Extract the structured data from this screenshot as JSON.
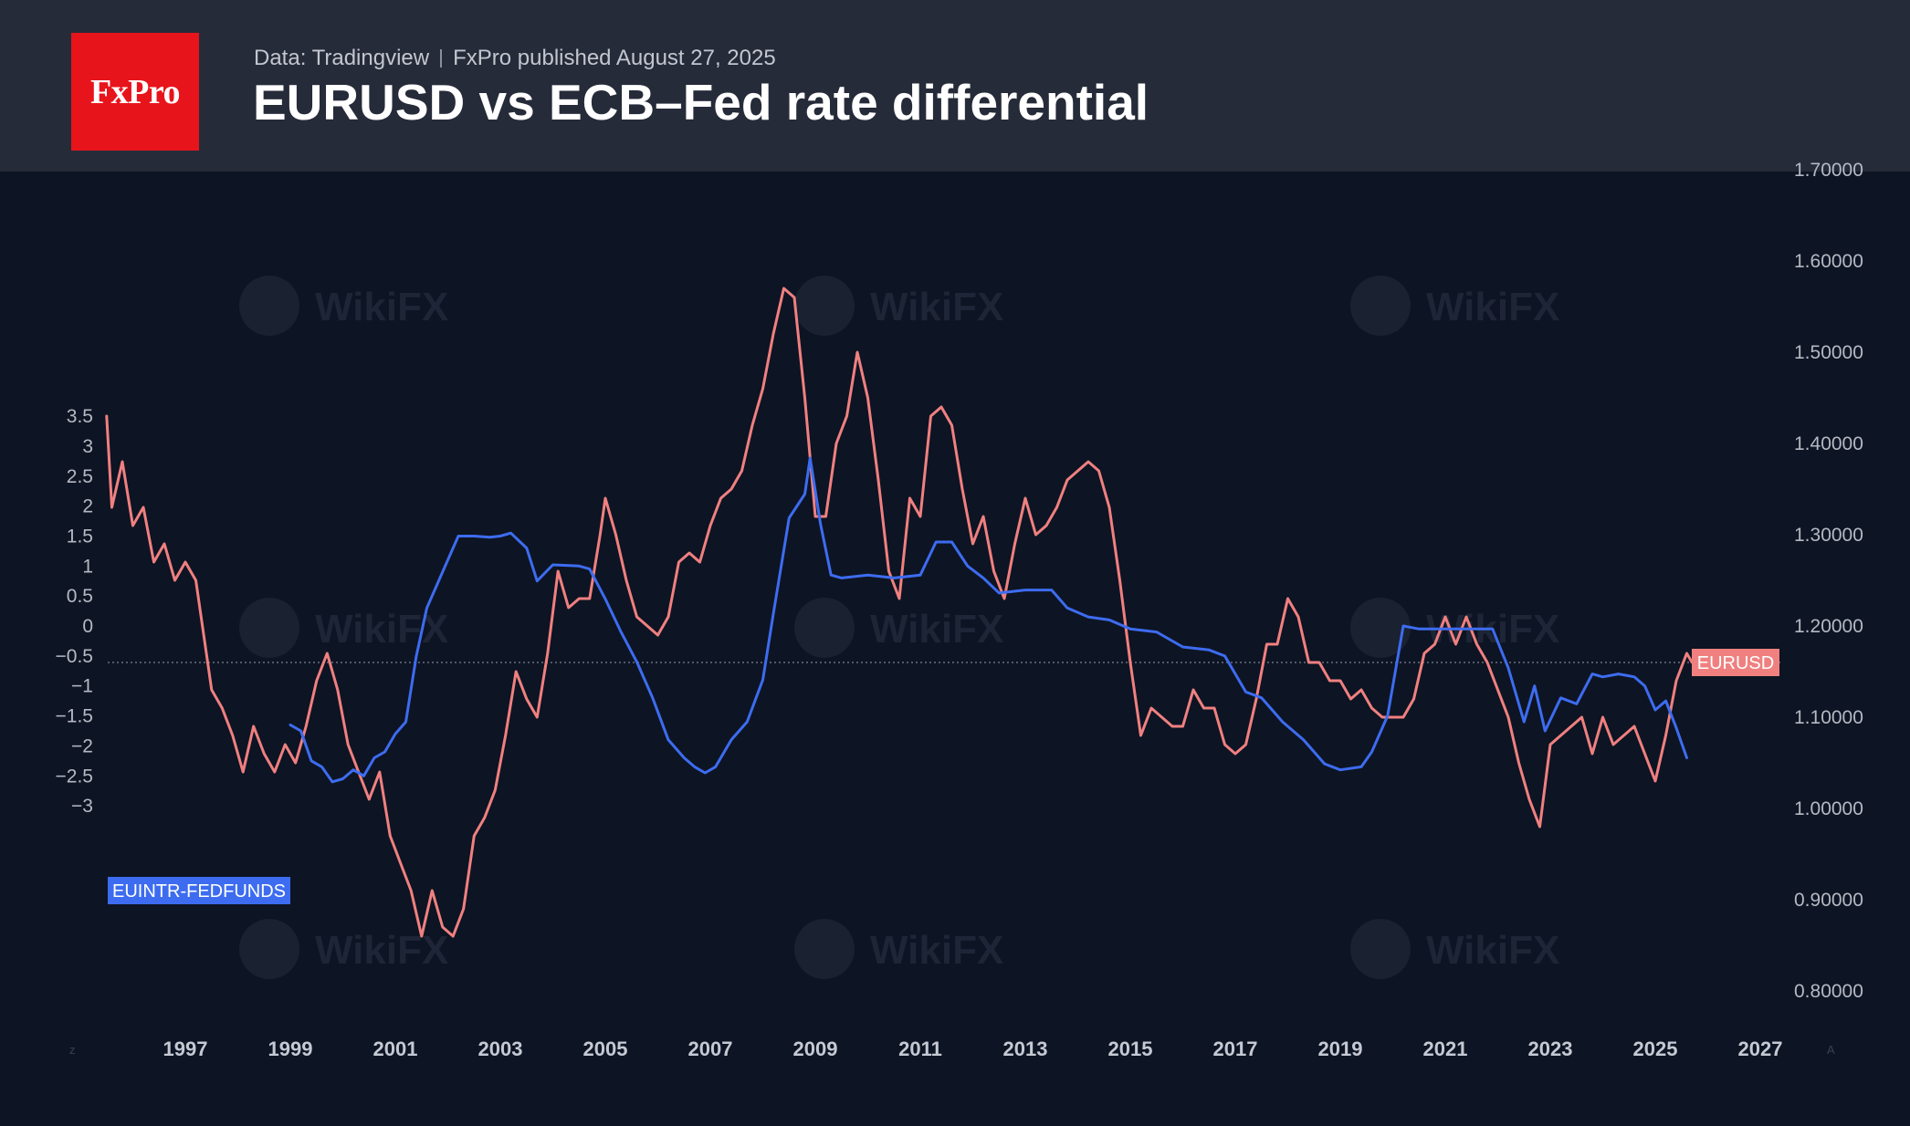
{
  "header": {
    "logo_text": "FxPro",
    "source": "Data: Tradingview",
    "published": "FxPro published August 27, 2025",
    "title": "EURUSD vs ECB–Fed rate differential"
  },
  "colors": {
    "background": "#0d1423",
    "header_bg": "#262b39",
    "logo_red": "#e8141b",
    "eurusd": "#f08080",
    "differential": "#3d6cf0"
  },
  "watermark": "WikiFX",
  "chart_data": {
    "type": "line",
    "title": "EURUSD vs ECB–Fed rate differential",
    "x_ticks": [
      "1997",
      "1999",
      "2001",
      "2003",
      "2005",
      "2007",
      "2009",
      "2011",
      "2013",
      "2015",
      "2017",
      "2019",
      "2021",
      "2023",
      "2025",
      "2027"
    ],
    "y_left": {
      "ticks": [
        "3.5",
        "3",
        "2.5",
        "2",
        "1.5",
        "1",
        "0.5",
        "0",
        "−0.5",
        "−1",
        "−1.5",
        "−2",
        "−2.5",
        "−3"
      ],
      "range": [
        -3,
        3.5
      ]
    },
    "y_right": {
      "ticks": [
        "1.70000",
        "1.60000",
        "1.50000",
        "1.40000",
        "1.30000",
        "1.20000",
        "1.10000",
        "1.00000",
        "0.90000",
        "0.80000"
      ],
      "range": [
        0.8,
        1.7
      ]
    },
    "reference_line": 1.16,
    "series": [
      {
        "name": "EURUSD",
        "axis": "right",
        "color": "#f08080",
        "label": "EURUSD",
        "points": [
          [
            1995.5,
            1.43
          ],
          [
            1995.6,
            1.33
          ],
          [
            1995.8,
            1.38
          ],
          [
            1996.0,
            1.31
          ],
          [
            1996.2,
            1.33
          ],
          [
            1996.4,
            1.27
          ],
          [
            1996.6,
            1.29
          ],
          [
            1996.8,
            1.25
          ],
          [
            1997.0,
            1.27
          ],
          [
            1997.2,
            1.25
          ],
          [
            1997.5,
            1.13
          ],
          [
            1997.7,
            1.11
          ],
          [
            1997.9,
            1.08
          ],
          [
            1998.1,
            1.04
          ],
          [
            1998.3,
            1.09
          ],
          [
            1998.5,
            1.06
          ],
          [
            1998.7,
            1.04
          ],
          [
            1998.9,
            1.07
          ],
          [
            1999.1,
            1.05
          ],
          [
            1999.3,
            1.09
          ],
          [
            1999.5,
            1.14
          ],
          [
            1999.7,
            1.17
          ],
          [
            1999.9,
            1.13
          ],
          [
            2000.1,
            1.07
          ],
          [
            2000.3,
            1.04
          ],
          [
            2000.5,
            1.01
          ],
          [
            2000.7,
            1.04
          ],
          [
            2000.9,
            0.97
          ],
          [
            2001.1,
            0.94
          ],
          [
            2001.3,
            0.91
          ],
          [
            2001.5,
            0.86
          ],
          [
            2001.7,
            0.91
          ],
          [
            2001.9,
            0.87
          ],
          [
            2002.1,
            0.86
          ],
          [
            2002.3,
            0.89
          ],
          [
            2002.5,
            0.97
          ],
          [
            2002.7,
            0.99
          ],
          [
            2002.9,
            1.02
          ],
          [
            2003.1,
            1.08
          ],
          [
            2003.3,
            1.15
          ],
          [
            2003.5,
            1.12
          ],
          [
            2003.7,
            1.1
          ],
          [
            2003.9,
            1.17
          ],
          [
            2004.1,
            1.26
          ],
          [
            2004.3,
            1.22
          ],
          [
            2004.5,
            1.23
          ],
          [
            2004.7,
            1.23
          ],
          [
            2004.9,
            1.3
          ],
          [
            2005.0,
            1.34
          ],
          [
            2005.2,
            1.3
          ],
          [
            2005.4,
            1.25
          ],
          [
            2005.6,
            1.21
          ],
          [
            2005.8,
            1.2
          ],
          [
            2006.0,
            1.19
          ],
          [
            2006.2,
            1.21
          ],
          [
            2006.4,
            1.27
          ],
          [
            2006.6,
            1.28
          ],
          [
            2006.8,
            1.27
          ],
          [
            2007.0,
            1.31
          ],
          [
            2007.2,
            1.34
          ],
          [
            2007.4,
            1.35
          ],
          [
            2007.6,
            1.37
          ],
          [
            2007.8,
            1.42
          ],
          [
            2008.0,
            1.46
          ],
          [
            2008.2,
            1.52
          ],
          [
            2008.4,
            1.57
          ],
          [
            2008.6,
            1.56
          ],
          [
            2008.8,
            1.45
          ],
          [
            2009.0,
            1.32
          ],
          [
            2009.2,
            1.32
          ],
          [
            2009.4,
            1.4
          ],
          [
            2009.6,
            1.43
          ],
          [
            2009.8,
            1.5
          ],
          [
            2010.0,
            1.45
          ],
          [
            2010.2,
            1.36
          ],
          [
            2010.4,
            1.26
          ],
          [
            2010.6,
            1.23
          ],
          [
            2010.8,
            1.34
          ],
          [
            2011.0,
            1.32
          ],
          [
            2011.2,
            1.43
          ],
          [
            2011.4,
            1.44
          ],
          [
            2011.6,
            1.42
          ],
          [
            2011.8,
            1.35
          ],
          [
            2012.0,
            1.29
          ],
          [
            2012.2,
            1.32
          ],
          [
            2012.4,
            1.26
          ],
          [
            2012.6,
            1.23
          ],
          [
            2012.8,
            1.29
          ],
          [
            2013.0,
            1.34
          ],
          [
            2013.2,
            1.3
          ],
          [
            2013.4,
            1.31
          ],
          [
            2013.6,
            1.33
          ],
          [
            2013.8,
            1.36
          ],
          [
            2014.0,
            1.37
          ],
          [
            2014.2,
            1.38
          ],
          [
            2014.4,
            1.37
          ],
          [
            2014.6,
            1.33
          ],
          [
            2014.8,
            1.25
          ],
          [
            2015.0,
            1.16
          ],
          [
            2015.2,
            1.08
          ],
          [
            2015.4,
            1.11
          ],
          [
            2015.6,
            1.1
          ],
          [
            2015.8,
            1.09
          ],
          [
            2016.0,
            1.09
          ],
          [
            2016.2,
            1.13
          ],
          [
            2016.4,
            1.11
          ],
          [
            2016.6,
            1.11
          ],
          [
            2016.8,
            1.07
          ],
          [
            2017.0,
            1.06
          ],
          [
            2017.2,
            1.07
          ],
          [
            2017.4,
            1.12
          ],
          [
            2017.6,
            1.18
          ],
          [
            2017.8,
            1.18
          ],
          [
            2018.0,
            1.23
          ],
          [
            2018.2,
            1.21
          ],
          [
            2018.4,
            1.16
          ],
          [
            2018.6,
            1.16
          ],
          [
            2018.8,
            1.14
          ],
          [
            2019.0,
            1.14
          ],
          [
            2019.2,
            1.12
          ],
          [
            2019.4,
            1.13
          ],
          [
            2019.6,
            1.11
          ],
          [
            2019.8,
            1.1
          ],
          [
            2020.0,
            1.1
          ],
          [
            2020.2,
            1.1
          ],
          [
            2020.4,
            1.12
          ],
          [
            2020.6,
            1.17
          ],
          [
            2020.8,
            1.18
          ],
          [
            2021.0,
            1.21
          ],
          [
            2021.2,
            1.18
          ],
          [
            2021.4,
            1.21
          ],
          [
            2021.6,
            1.18
          ],
          [
            2021.8,
            1.16
          ],
          [
            2022.0,
            1.13
          ],
          [
            2022.2,
            1.1
          ],
          [
            2022.4,
            1.05
          ],
          [
            2022.6,
            1.01
          ],
          [
            2022.8,
            0.98
          ],
          [
            2023.0,
            1.07
          ],
          [
            2023.2,
            1.08
          ],
          [
            2023.4,
            1.09
          ],
          [
            2023.6,
            1.1
          ],
          [
            2023.8,
            1.06
          ],
          [
            2024.0,
            1.1
          ],
          [
            2024.2,
            1.07
          ],
          [
            2024.4,
            1.08
          ],
          [
            2024.6,
            1.09
          ],
          [
            2024.8,
            1.06
          ],
          [
            2025.0,
            1.03
          ],
          [
            2025.2,
            1.08
          ],
          [
            2025.4,
            1.14
          ],
          [
            2025.6,
            1.17
          ],
          [
            2025.7,
            1.16
          ]
        ]
      },
      {
        "name": "EUINTR-FEDFUNDS",
        "axis": "left",
        "color": "#3d6cf0",
        "label": "EUINTR-FEDFUNDS",
        "points": [
          [
            1999.0,
            -1.65
          ],
          [
            1999.2,
            -1.75
          ],
          [
            1999.4,
            -2.25
          ],
          [
            1999.6,
            -2.35
          ],
          [
            1999.8,
            -2.6
          ],
          [
            2000.0,
            -2.55
          ],
          [
            2000.2,
            -2.4
          ],
          [
            2000.4,
            -2.5
          ],
          [
            2000.6,
            -2.2
          ],
          [
            2000.8,
            -2.1
          ],
          [
            2001.0,
            -1.8
          ],
          [
            2001.2,
            -1.6
          ],
          [
            2001.4,
            -0.5
          ],
          [
            2001.6,
            0.3
          ],
          [
            2001.8,
            0.7
          ],
          [
            2002.0,
            1.1
          ],
          [
            2002.2,
            1.5
          ],
          [
            2002.5,
            1.5
          ],
          [
            2002.8,
            1.48
          ],
          [
            2003.0,
            1.5
          ],
          [
            2003.2,
            1.55
          ],
          [
            2003.5,
            1.3
          ],
          [
            2003.7,
            0.75
          ],
          [
            2004.0,
            1.02
          ],
          [
            2004.5,
            1.0
          ],
          [
            2004.7,
            0.95
          ],
          [
            2005.0,
            0.45
          ],
          [
            2005.3,
            -0.1
          ],
          [
            2005.6,
            -0.6
          ],
          [
            2005.9,
            -1.2
          ],
          [
            2006.2,
            -1.9
          ],
          [
            2006.5,
            -2.2
          ],
          [
            2006.7,
            -2.35
          ],
          [
            2006.9,
            -2.45
          ],
          [
            2007.1,
            -2.35
          ],
          [
            2007.4,
            -1.9
          ],
          [
            2007.7,
            -1.6
          ],
          [
            2008.0,
            -0.9
          ],
          [
            2008.2,
            0.2
          ],
          [
            2008.5,
            1.8
          ],
          [
            2008.8,
            2.2
          ],
          [
            2008.9,
            2.8
          ],
          [
            2009.1,
            1.7
          ],
          [
            2009.3,
            0.85
          ],
          [
            2009.5,
            0.8
          ],
          [
            2010.0,
            0.85
          ],
          [
            2010.5,
            0.8
          ],
          [
            2011.0,
            0.85
          ],
          [
            2011.3,
            1.4
          ],
          [
            2011.6,
            1.4
          ],
          [
            2011.9,
            1.0
          ],
          [
            2012.2,
            0.8
          ],
          [
            2012.5,
            0.55
          ],
          [
            2013.0,
            0.6
          ],
          [
            2013.5,
            0.6
          ],
          [
            2013.8,
            0.3
          ],
          [
            2014.2,
            0.15
          ],
          [
            2014.6,
            0.1
          ],
          [
            2015.0,
            -0.05
          ],
          [
            2015.5,
            -0.1
          ],
          [
            2016.0,
            -0.35
          ],
          [
            2016.5,
            -0.4
          ],
          [
            2016.8,
            -0.5
          ],
          [
            2017.2,
            -1.1
          ],
          [
            2017.5,
            -1.2
          ],
          [
            2017.9,
            -1.6
          ],
          [
            2018.3,
            -1.9
          ],
          [
            2018.7,
            -2.3
          ],
          [
            2019.0,
            -2.4
          ],
          [
            2019.4,
            -2.35
          ],
          [
            2019.6,
            -2.1
          ],
          [
            2019.9,
            -1.5
          ],
          [
            2020.2,
            0.0
          ],
          [
            2020.5,
            -0.05
          ],
          [
            2021.0,
            -0.05
          ],
          [
            2021.5,
            -0.05
          ],
          [
            2021.9,
            -0.05
          ],
          [
            2022.2,
            -0.7
          ],
          [
            2022.5,
            -1.6
          ],
          [
            2022.7,
            -1.0
          ],
          [
            2022.9,
            -1.75
          ],
          [
            2023.2,
            -1.2
          ],
          [
            2023.5,
            -1.3
          ],
          [
            2023.8,
            -0.8
          ],
          [
            2024.0,
            -0.85
          ],
          [
            2024.3,
            -0.8
          ],
          [
            2024.6,
            -0.85
          ],
          [
            2024.8,
            -1.0
          ],
          [
            2025.0,
            -1.4
          ],
          [
            2025.2,
            -1.25
          ],
          [
            2025.4,
            -1.7
          ],
          [
            2025.6,
            -2.2
          ]
        ]
      }
    ]
  }
}
